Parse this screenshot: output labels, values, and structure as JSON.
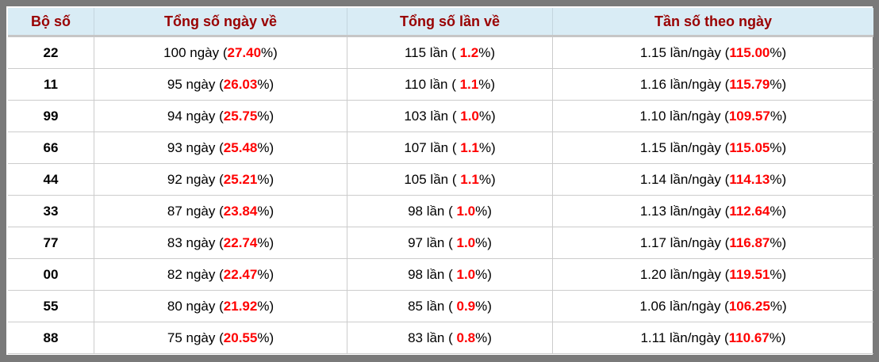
{
  "colors": {
    "frame": "#7a7a7a",
    "header_bg": "#d9ecf5",
    "header_text": "#990000",
    "highlight_red": "#ff0000",
    "body_text": "#000000",
    "grid_line": "#cccccc",
    "header_underline": "#c6c6c6"
  },
  "table": {
    "headers": [
      "Bộ số",
      "Tổng số ngày về",
      "Tổng số lần về",
      "Tần số theo ngày"
    ],
    "rows": [
      {
        "number": "22",
        "days": {
          "pre": "100 ngày (",
          "value": "27.40",
          "post": "%)"
        },
        "times": {
          "pre": "115 lần ( ",
          "value": "1.2",
          "post": "%)"
        },
        "freq": {
          "pre": "1.15 lần/ngày (",
          "value": "115.00",
          "post": "%)"
        }
      },
      {
        "number": "11",
        "days": {
          "pre": "95 ngày (",
          "value": "26.03",
          "post": "%)"
        },
        "times": {
          "pre": "110 lần ( ",
          "value": "1.1",
          "post": "%)"
        },
        "freq": {
          "pre": "1.16 lần/ngày (",
          "value": "115.79",
          "post": "%)"
        }
      },
      {
        "number": "99",
        "days": {
          "pre": "94 ngày (",
          "value": "25.75",
          "post": "%)"
        },
        "times": {
          "pre": "103 lần ( ",
          "value": "1.0",
          "post": "%)"
        },
        "freq": {
          "pre": "1.10 lần/ngày (",
          "value": "109.57",
          "post": "%)"
        }
      },
      {
        "number": "66",
        "days": {
          "pre": "93 ngày (",
          "value": "25.48",
          "post": "%)"
        },
        "times": {
          "pre": "107 lần ( ",
          "value": "1.1",
          "post": "%)"
        },
        "freq": {
          "pre": "1.15 lần/ngày (",
          "value": "115.05",
          "post": "%)"
        }
      },
      {
        "number": "44",
        "days": {
          "pre": "92 ngày (",
          "value": "25.21",
          "post": "%)"
        },
        "times": {
          "pre": "105 lần ( ",
          "value": "1.1",
          "post": "%)"
        },
        "freq": {
          "pre": "1.14 lần/ngày (",
          "value": "114.13",
          "post": "%)"
        }
      },
      {
        "number": "33",
        "days": {
          "pre": "87 ngày (",
          "value": "23.84",
          "post": "%)"
        },
        "times": {
          "pre": "98 lần ( ",
          "value": "1.0",
          "post": "%)"
        },
        "freq": {
          "pre": "1.13 lần/ngày (",
          "value": "112.64",
          "post": "%)"
        }
      },
      {
        "number": "77",
        "days": {
          "pre": "83 ngày (",
          "value": "22.74",
          "post": "%)"
        },
        "times": {
          "pre": "97 lần ( ",
          "value": "1.0",
          "post": "%)"
        },
        "freq": {
          "pre": "1.17 lần/ngày (",
          "value": "116.87",
          "post": "%)"
        }
      },
      {
        "number": "00",
        "days": {
          "pre": "82 ngày (",
          "value": "22.47",
          "post": "%)"
        },
        "times": {
          "pre": "98 lần ( ",
          "value": "1.0",
          "post": "%)"
        },
        "freq": {
          "pre": "1.20 lần/ngày (",
          "value": "119.51",
          "post": "%)"
        }
      },
      {
        "number": "55",
        "days": {
          "pre": "80 ngày (",
          "value": "21.92",
          "post": "%)"
        },
        "times": {
          "pre": "85 lần ( ",
          "value": "0.9",
          "post": "%)"
        },
        "freq": {
          "pre": "1.06 lần/ngày (",
          "value": "106.25",
          "post": "%)"
        }
      },
      {
        "number": "88",
        "days": {
          "pre": "75 ngày (",
          "value": "20.55",
          "post": "%)"
        },
        "times": {
          "pre": "83 lần ( ",
          "value": "0.8",
          "post": "%)"
        },
        "freq": {
          "pre": "1.11 lần/ngày (",
          "value": "110.67",
          "post": "%)"
        }
      }
    ]
  },
  "chart_data": {
    "type": "table",
    "columns": [
      "Bộ số",
      "Tổng số ngày về",
      "Tổng số lần về",
      "Tần số theo ngày"
    ],
    "rows": [
      {
        "bo_so": "22",
        "ngay_ve": 100,
        "ngay_ve_pct": 27.4,
        "lan_ve": 115,
        "lan_ve_pct": 1.2,
        "lan_per_ngay": 1.15,
        "tan_so_pct": 115.0
      },
      {
        "bo_so": "11",
        "ngay_ve": 95,
        "ngay_ve_pct": 26.03,
        "lan_ve": 110,
        "lan_ve_pct": 1.1,
        "lan_per_ngay": 1.16,
        "tan_so_pct": 115.79
      },
      {
        "bo_so": "99",
        "ngay_ve": 94,
        "ngay_ve_pct": 25.75,
        "lan_ve": 103,
        "lan_ve_pct": 1.0,
        "lan_per_ngay": 1.1,
        "tan_so_pct": 109.57
      },
      {
        "bo_so": "66",
        "ngay_ve": 93,
        "ngay_ve_pct": 25.48,
        "lan_ve": 107,
        "lan_ve_pct": 1.1,
        "lan_per_ngay": 1.15,
        "tan_so_pct": 115.05
      },
      {
        "bo_so": "44",
        "ngay_ve": 92,
        "ngay_ve_pct": 25.21,
        "lan_ve": 105,
        "lan_ve_pct": 1.1,
        "lan_per_ngay": 1.14,
        "tan_so_pct": 114.13
      },
      {
        "bo_so": "33",
        "ngay_ve": 87,
        "ngay_ve_pct": 23.84,
        "lan_ve": 98,
        "lan_ve_pct": 1.0,
        "lan_per_ngay": 1.13,
        "tan_so_pct": 112.64
      },
      {
        "bo_so": "77",
        "ngay_ve": 83,
        "ngay_ve_pct": 22.74,
        "lan_ve": 97,
        "lan_ve_pct": 1.0,
        "lan_per_ngay": 1.17,
        "tan_so_pct": 116.87
      },
      {
        "bo_so": "00",
        "ngay_ve": 82,
        "ngay_ve_pct": 22.47,
        "lan_ve": 98,
        "lan_ve_pct": 1.0,
        "lan_per_ngay": 1.2,
        "tan_so_pct": 119.51
      },
      {
        "bo_so": "55",
        "ngay_ve": 80,
        "ngay_ve_pct": 21.92,
        "lan_ve": 85,
        "lan_ve_pct": 0.9,
        "lan_per_ngay": 1.06,
        "tan_so_pct": 106.25
      },
      {
        "bo_so": "88",
        "ngay_ve": 75,
        "ngay_ve_pct": 20.55,
        "lan_ve": 83,
        "lan_ve_pct": 0.8,
        "lan_per_ngay": 1.11,
        "tan_so_pct": 110.67
      }
    ]
  }
}
